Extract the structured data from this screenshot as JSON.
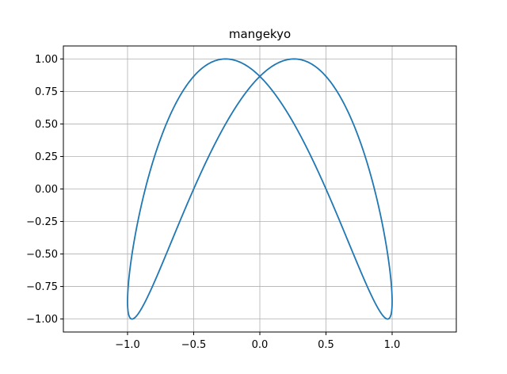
{
  "chart_data": {
    "type": "line",
    "title": "mangekyo",
    "xlabel": "",
    "ylabel": "",
    "xlim": [
      -1.485,
      1.485
    ],
    "ylim": [
      -1.1,
      1.1
    ],
    "grid": true,
    "x_ticks": [
      -1.0,
      -0.5,
      0.0,
      0.5,
      1.0
    ],
    "x_tick_labels": [
      "−1.0",
      "−0.5",
      "0.0",
      "0.5",
      "1.0"
    ],
    "y_ticks": [
      -1.0,
      -0.75,
      -0.5,
      -0.25,
      0.0,
      0.25,
      0.5,
      0.75,
      1.0
    ],
    "y_tick_labels": [
      "−1.00",
      "−0.75",
      "−0.50",
      "−0.25",
      "0.00",
      "0.25",
      "0.50",
      "0.75",
      "1.00"
    ],
    "series": [
      {
        "curve": "x = sin(t), y = sin(2t + π/3), t ∈ [0, 2π]",
        "color": "#1f77b4"
      }
    ]
  }
}
